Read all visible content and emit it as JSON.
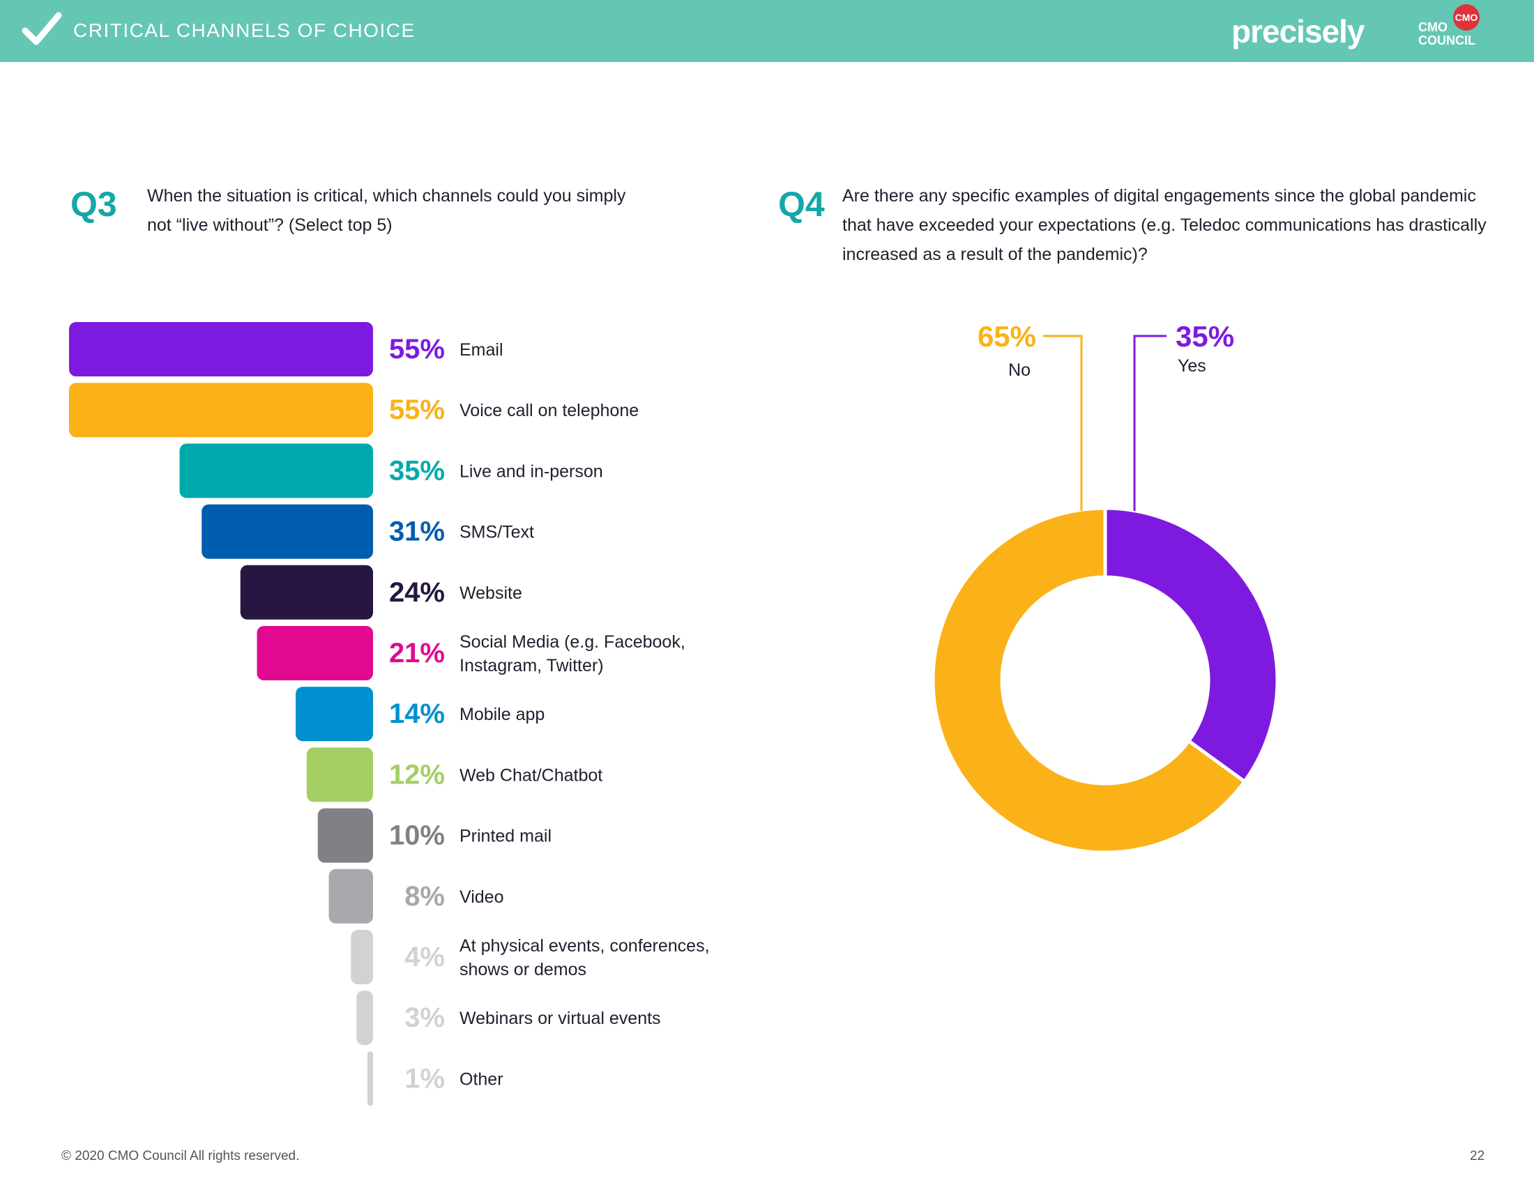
{
  "header": {
    "title": "CRITICAL CHANNELS OF CHOICE",
    "brand": "precisely",
    "logo_text": "CMO COUNCIL",
    "bg_color": "#64c7b3"
  },
  "q3": {
    "number": "Q3",
    "text": "When the situation is critical, which channels could you simply not “live without”? (Select top 5)"
  },
  "q4": {
    "number": "Q4",
    "text": "Are there any specific examples of digital engagements since the global pandemic that have exceeded your expectations (e.g. Teledoc communications has drastically increased as a result of the pandemic)?"
  },
  "chart_data": [
    {
      "type": "bar",
      "orientation": "horizontal",
      "categories": [
        "Email",
        "Voice call on telephone",
        "Live and in-person",
        "SMS/Text",
        "Website",
        "Social Media (e.g. Facebook, Instagram, Twitter)",
        "Mobile app",
        "Web Chat/Chatbot",
        "Printed mail",
        "Video",
        "At physical events, conferences, shows or demos",
        "Webinars or virtual events",
        "Other"
      ],
      "category_lines": [
        [
          "Email"
        ],
        [
          "Voice call on telephone"
        ],
        [
          "Live and in-person"
        ],
        [
          "SMS/Text"
        ],
        [
          "Website"
        ],
        [
          "Social Media (e.g. Facebook,",
          "Instagram, Twitter)"
        ],
        [
          "Mobile app"
        ],
        [
          "Web Chat/Chatbot"
        ],
        [
          "Printed mail"
        ],
        [
          "Video"
        ],
        [
          "At physical events, conferences,",
          "shows or demos"
        ],
        [
          "Webinars or virtual events"
        ],
        [
          "Other"
        ]
      ],
      "values": [
        55,
        55,
        35,
        31,
        24,
        21,
        14,
        12,
        10,
        8,
        4,
        3,
        1
      ],
      "value_labels": [
        "55%",
        "55%",
        "35%",
        "31%",
        "24%",
        "21%",
        "14%",
        "12%",
        "10%",
        "8%",
        "4%",
        "3%",
        "1%"
      ],
      "colors": [
        "#7e1ae0",
        "#fbb118",
        "#00a9ac",
        "#005dae",
        "#261641",
        "#e2088f",
        "#0090cf",
        "#a3cf62",
        "#808184",
        "#a7a9ac",
        "#d1d2d4",
        "#d1d2d4",
        "#d1d2d4"
      ],
      "xlim": [
        0,
        55
      ]
    },
    {
      "type": "pie",
      "style": "donut",
      "categories": [
        "Yes",
        "No"
      ],
      "values": [
        35,
        65
      ],
      "value_labels": [
        "35%",
        "65%"
      ],
      "colors": [
        "#7e1ae0",
        "#fbb118"
      ]
    }
  ],
  "footer": {
    "copyright": "© 2020 CMO Council  All rights reserved.",
    "page_number": "22"
  }
}
